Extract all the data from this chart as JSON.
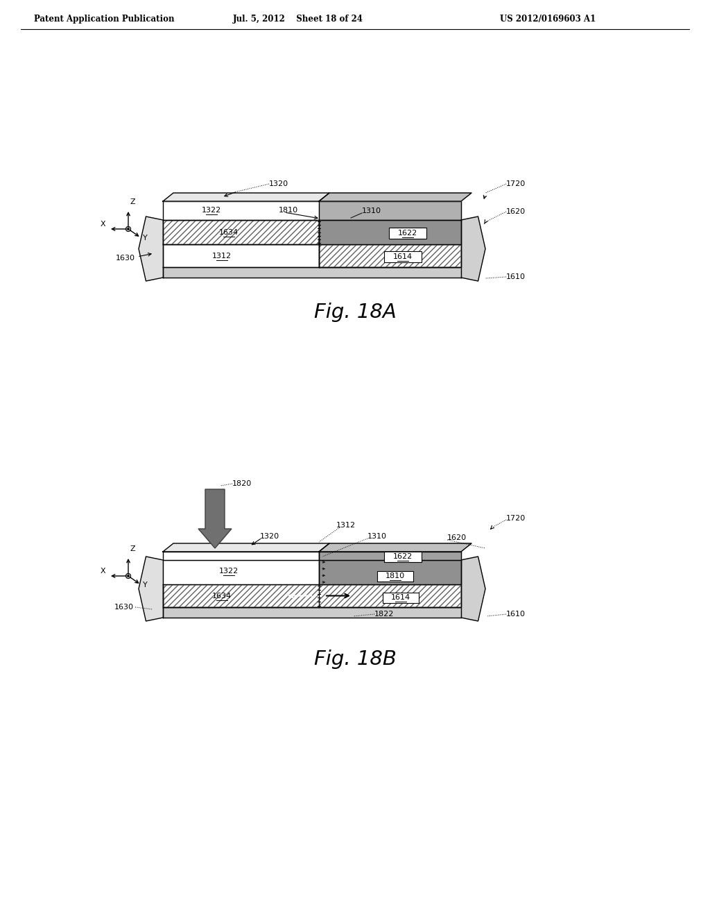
{
  "header_left": "Patent Application Publication",
  "header_mid": "Jul. 5, 2012    Sheet 18 of 24",
  "header_right": "US 2012/0169603 A1",
  "fig_a_label": "Fig. 18A",
  "fig_b_label": "Fig. 18B",
  "bg_color": "#ffffff",
  "line_color": "#000000",
  "dark_gray": "#909090",
  "medium_gray": "#b8b8b8",
  "light_gray": "#d8d8d8",
  "hatch_fg": "#606060"
}
